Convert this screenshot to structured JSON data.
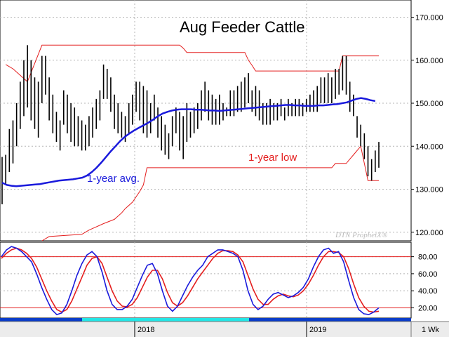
{
  "chart_data": [
    {
      "type": "line",
      "panel": "price",
      "title": "Aug Feeder Cattle",
      "y_axis_side": "right",
      "ylim": [
        118,
        174
      ],
      "y_ticks": [
        "120.000",
        "130.000",
        "140.000",
        "150.000",
        "160.000",
        "170.000"
      ],
      "grid": true,
      "watermark": "DTN ProphetX®",
      "annotations": {
        "avg_label": "1-year avg.",
        "low_label": "1-year low"
      },
      "colors": {
        "bars": "#000000",
        "avg": "#1a1adc",
        "channel": "#e41e1e"
      },
      "series": [
        {
          "name": "price-bars",
          "kind": "high-low",
          "bars": [
            [
              137.5,
              126.5
            ],
            [
              138,
              131
            ],
            [
              144,
              134
            ],
            [
              146,
              136
            ],
            [
              150,
              140
            ],
            [
              155,
              144
            ],
            [
              160,
              147
            ],
            [
              163.5,
              149
            ],
            [
              160,
              146
            ],
            [
              156,
              144
            ],
            [
              155,
              142
            ],
            [
              161,
              150
            ],
            [
              161,
              152
            ],
            [
              156,
              146
            ],
            [
              152,
              143
            ],
            [
              148,
              141
            ],
            [
              146,
              139
            ],
            [
              153,
              145
            ],
            [
              152,
              143
            ],
            [
              150,
              141
            ],
            [
              149,
              140
            ],
            [
              147,
              140
            ],
            [
              146,
              139
            ],
            [
              145,
              139
            ],
            [
              147,
              140
            ],
            [
              149,
              142
            ],
            [
              151,
              144
            ],
            [
              153,
              146
            ],
            [
              159,
              151
            ],
            [
              158,
              151
            ],
            [
              156,
              148
            ],
            [
              152,
              144
            ],
            [
              150,
              143
            ],
            [
              148,
              142
            ],
            [
              147,
              141
            ],
            [
              150,
              143
            ],
            [
              152,
              145
            ],
            [
              155,
              148
            ],
            [
              155,
              146
            ],
            [
              154,
              143
            ],
            [
              153,
              142
            ],
            [
              150,
              143
            ],
            [
              152,
              146
            ],
            [
              149,
              142
            ],
            [
              147,
              139
            ],
            [
              145,
              138
            ],
            [
              143,
              137
            ],
            [
              147,
              140
            ],
            [
              149,
              143
            ],
            [
              148,
              139
            ],
            [
              147,
              137
            ],
            [
              150,
              141
            ],
            [
              148,
              142
            ],
            [
              149,
              143
            ],
            [
              150,
              144
            ],
            [
              153,
              146
            ],
            [
              155,
              148
            ],
            [
              153,
              146
            ],
            [
              152,
              145
            ],
            [
              151,
              145
            ],
            [
              152,
              145
            ],
            [
              150,
              146
            ],
            [
              149,
              147
            ],
            [
              153,
              147
            ],
            [
              153,
              147
            ],
            [
              154,
              148
            ],
            [
              155,
              148
            ],
            [
              156,
              149
            ],
            [
              157,
              150
            ],
            [
              153,
              148
            ],
            [
              154,
              147
            ],
            [
              153,
              146
            ],
            [
              150,
              145
            ],
            [
              150,
              145
            ],
            [
              151,
              145
            ],
            [
              150,
              146
            ],
            [
              150,
              146
            ],
            [
              151,
              147
            ],
            [
              149,
              146
            ],
            [
              151,
              147
            ],
            [
              150,
              147
            ],
            [
              151,
              147
            ],
            [
              151,
              147
            ],
            [
              150,
              147
            ],
            [
              151,
              148
            ],
            [
              152,
              148
            ],
            [
              153,
              148
            ],
            [
              154,
              148
            ],
            [
              156,
              150
            ],
            [
              156,
              150
            ],
            [
              157,
              150
            ],
            [
              156,
              150
            ],
            [
              158,
              151
            ],
            [
              158,
              152
            ],
            [
              161,
              153
            ],
            [
              161,
              152
            ],
            [
              155,
              148
            ],
            [
              152,
              147
            ],
            [
              147,
              142
            ],
            [
              145,
              140
            ],
            [
              143,
              137
            ],
            [
              140,
              133
            ],
            [
              137,
              132
            ],
            [
              139,
              134
            ],
            [
              141,
              135
            ]
          ]
        },
        {
          "name": "1-year avg.",
          "kind": "line",
          "values": [
            131.5,
            131,
            130.8,
            130.7,
            130.8,
            130.9,
            131,
            131.1,
            131.2,
            131.4,
            131.6,
            131.8,
            132,
            132.1,
            132.2,
            132.3,
            132.5,
            132.7,
            133.2,
            134,
            135,
            136.2,
            137.5,
            138.8,
            140,
            141.2,
            142.2,
            143,
            143.7,
            144.3,
            144.9,
            145.5,
            146.2,
            147,
            147.6,
            148,
            148.3,
            148.5,
            148.6,
            148.6,
            148.6,
            148.5,
            148.5,
            148.4,
            148.3,
            148.3,
            148.2,
            148.3,
            148.4,
            148.5,
            148.6,
            148.7,
            148.8,
            148.9,
            149,
            149.1,
            149.2,
            149.3,
            149.4,
            149.5,
            149.6,
            149.6,
            149.5,
            149.5,
            149.4,
            149.4,
            149.4,
            149.5,
            149.5,
            149.6,
            149.7,
            149.8,
            150,
            150.2,
            150.6,
            151,
            151.2,
            151,
            150.7,
            150.5
          ]
        },
        {
          "name": "high-channel",
          "kind": "step",
          "points": [
            [
              "1",
              159
            ],
            [
              "3",
              158
            ],
            [
              "7",
              155
            ],
            [
              "11",
              163.5
            ],
            [
              "49",
              163.5
            ],
            [
              "50",
              162.8
            ],
            [
              "51",
              161.8
            ],
            [
              "67",
              161.8
            ],
            [
              "68",
              160
            ],
            [
              "69",
              158.8
            ],
            [
              "70",
              157.5
            ],
            [
              "93",
              157.5
            ],
            [
              "94",
              161
            ],
            [
              "104",
              161
            ]
          ]
        },
        {
          "name": "low-channel",
          "kind": "step",
          "points": [
            [
              "11",
              118
            ],
            [
              "13",
              119
            ],
            [
              "22",
              119.5
            ],
            [
              "24",
              120.5
            ],
            [
              "28",
              122
            ],
            [
              "31",
              123
            ],
            [
              "33",
              124.5
            ],
            [
              "34",
              125.5
            ],
            [
              "36",
              127
            ],
            [
              "38",
              129.5
            ],
            [
              "39",
              131
            ],
            [
              "40",
              135
            ],
            [
              "91",
              135
            ],
            [
              "92",
              136
            ],
            [
              "95",
              136
            ],
            [
              "96",
              137
            ],
            [
              "97",
              138
            ],
            [
              "99",
              140
            ],
            [
              "101",
              132
            ],
            [
              "104",
              132
            ]
          ]
        }
      ],
      "x_labels": [
        "2018",
        "2019"
      ]
    },
    {
      "type": "line",
      "panel": "stochastic",
      "ylim": [
        8,
        97
      ],
      "y_ticks": [
        "20.00",
        "40.00",
        "60.00",
        "80.00"
      ],
      "reference_lines": [
        80,
        20
      ],
      "grid": true,
      "colors": {
        "fast": "#1a1adc",
        "slow": "#e41e1e"
      },
      "series": [
        {
          "name": "fast",
          "values": [
            80,
            88,
            92,
            90,
            86,
            80,
            74,
            60,
            44,
            30,
            18,
            12,
            14,
            24,
            40,
            58,
            72,
            82,
            86,
            80,
            62,
            40,
            24,
            18,
            18,
            22,
            30,
            44,
            58,
            70,
            72,
            60,
            40,
            22,
            16,
            22,
            34,
            46,
            56,
            64,
            70,
            80,
            84,
            88,
            88,
            86,
            84,
            80,
            64,
            40,
            24,
            18,
            22,
            30,
            36,
            38,
            35,
            32,
            34,
            38,
            44,
            54,
            68,
            80,
            88,
            90,
            84,
            86,
            74,
            52,
            32,
            18,
            13,
            12,
            15,
            20
          ]
        },
        {
          "name": "slow",
          "values": [
            78,
            84,
            88,
            90,
            88,
            84,
            78,
            68,
            54,
            40,
            28,
            18,
            15,
            18,
            28,
            42,
            56,
            70,
            78,
            80,
            72,
            56,
            40,
            28,
            22,
            21,
            24,
            32,
            44,
            56,
            64,
            64,
            54,
            38,
            26,
            22,
            26,
            34,
            44,
            54,
            62,
            70,
            78,
            84,
            87,
            87,
            86,
            82,
            74,
            58,
            42,
            30,
            24,
            24,
            30,
            34,
            36,
            34,
            33,
            35,
            40,
            48,
            58,
            70,
            80,
            86,
            86,
            85,
            80,
            66,
            48,
            32,
            22,
            16,
            15,
            16
          ]
        }
      ]
    }
  ],
  "x_axis": {
    "labels": [
      "2018",
      "2019"
    ],
    "timeframe": "1 Wk"
  }
}
